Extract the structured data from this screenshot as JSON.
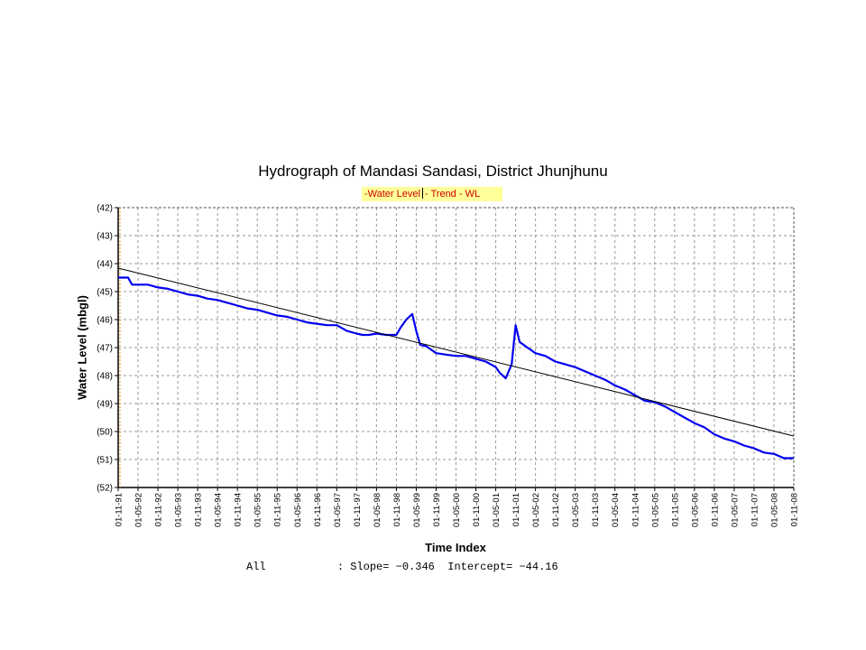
{
  "chart_data": {
    "type": "line",
    "title": "Hydrograph of Mandasi Sandasi, District Jhunjhunu",
    "xlabel": "Time Index",
    "ylabel": "Water Level (mbgl)",
    "ylim": [
      42,
      52
    ],
    "y_inverted": true,
    "y_ticks": [
      "(42)",
      "(43)",
      "(44)",
      "(45)",
      "(46)",
      "(47)",
      "(48)",
      "(49)",
      "(50)",
      "(51)",
      "(52)"
    ],
    "y_tick_values": [
      42,
      43,
      44,
      45,
      46,
      47,
      48,
      49,
      50,
      51,
      52
    ],
    "categories": [
      "01-11-91",
      "01-05-92",
      "01-11-92",
      "01-05-93",
      "01-11-93",
      "01-05-94",
      "01-11-94",
      "01-05-95",
      "01-11-95",
      "01-05-96",
      "01-11-96",
      "01-05-97",
      "01-11-97",
      "01-05-98",
      "01-11-98",
      "01-05-99",
      "01-11-99",
      "01-05-00",
      "01-11-00",
      "01-05-01",
      "01-11-01",
      "01-05-02",
      "01-11-02",
      "01-05-03",
      "01-11-03",
      "01-05-04",
      "01-11-04",
      "01-05-05",
      "01-11-05",
      "01-05-06",
      "01-11-06",
      "01-05-07",
      "01-11-07",
      "01-05-08",
      "01-11-08"
    ],
    "grid": true,
    "legend": {
      "placement": "top",
      "water_level": "-Water Level",
      "trend": "- Trend - WL"
    },
    "series": [
      {
        "name": "Water Level",
        "color": "#0000ee",
        "x": [
          0,
          0.5,
          0.7,
          1,
          1.5,
          2,
          2.5,
          3,
          3.5,
          4,
          4.5,
          5,
          5.5,
          6,
          6.5,
          7,
          7.5,
          8,
          8.5,
          9,
          9.5,
          10,
          10.5,
          11,
          11.5,
          12,
          12.3,
          12.6,
          13,
          13.5,
          14,
          14.2,
          14.5,
          14.8,
          15,
          15.2,
          15.5,
          16,
          16.5,
          17,
          17.5,
          18,
          18.5,
          19,
          19.2,
          19.5,
          19.8,
          20,
          20.2,
          20.5,
          20.8,
          21,
          21.5,
          22,
          22.5,
          23,
          23.5,
          24,
          24.5,
          25,
          25.5,
          26,
          26.5,
          27,
          27.5,
          28,
          28.5,
          29,
          29.5,
          30,
          30.5,
          31,
          31.5,
          32,
          32.5,
          33,
          33.5,
          34
        ],
        "values": [
          44.5,
          44.5,
          44.75,
          44.75,
          44.75,
          44.85,
          44.9,
          45.0,
          45.1,
          45.15,
          45.25,
          45.3,
          45.4,
          45.5,
          45.6,
          45.65,
          45.75,
          45.85,
          45.9,
          46.0,
          46.1,
          46.15,
          46.2,
          46.2,
          46.4,
          46.5,
          46.55,
          46.55,
          46.5,
          46.55,
          46.55,
          46.3,
          46.0,
          45.8,
          46.4,
          46.9,
          46.95,
          47.2,
          47.25,
          47.3,
          47.3,
          47.4,
          47.5,
          47.7,
          47.9,
          48.1,
          47.6,
          46.2,
          46.8,
          46.95,
          47.1,
          47.2,
          47.3,
          47.5,
          47.6,
          47.7,
          47.85,
          48.0,
          48.15,
          48.35,
          48.5,
          48.7,
          48.9,
          48.95,
          49.1,
          49.3,
          49.5,
          49.7,
          49.85,
          50.1,
          50.25,
          50.35,
          50.5,
          50.6,
          50.75,
          50.8,
          50.95,
          50.95
        ]
      },
      {
        "name": "Trend - WL",
        "color": "#000000",
        "x": [
          0,
          34
        ],
        "values": [
          44.16,
          50.16
        ]
      }
    ]
  },
  "stats": {
    "group": "All",
    "text": ": Slope= −0.346  Intercept= −44.16"
  }
}
